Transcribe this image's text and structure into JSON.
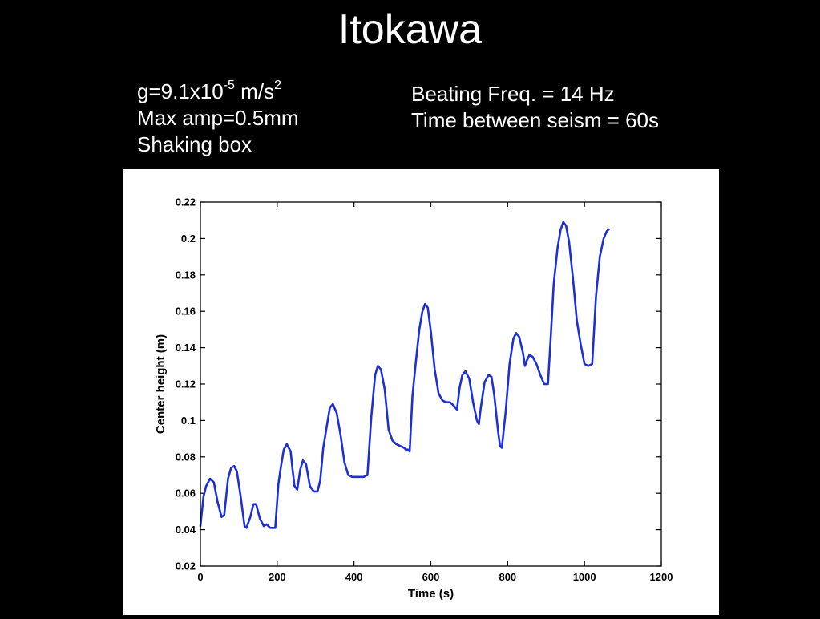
{
  "slide": {
    "title": "Itokawa",
    "left_info": {
      "gravity_prefix": "g=9.1x10",
      "gravity_exponent": "-5",
      "gravity_unit": " m/s",
      "gravity_unit_exponent": "2",
      "max_amp": "Max amp=0.5mm",
      "method": "Shaking box"
    },
    "right_info": {
      "beating_freq": "Beating Freq. = 14 Hz",
      "time_between": "Time between seism = 60s"
    }
  },
  "colors": {
    "background": "#000000",
    "text": "#ffffff",
    "plot_background": "#ffffff",
    "line": "#1f2fd6"
  },
  "chart_data": {
    "type": "line",
    "title": "",
    "xlabel": "Time (s)",
    "ylabel": "Center height (m)",
    "xlim": [
      0,
      1200
    ],
    "ylim": [
      0.02,
      0.22
    ],
    "xticks": [
      0,
      200,
      400,
      600,
      800,
      1000,
      1200
    ],
    "xtick_labels": [
      "0",
      "200",
      "400",
      "600",
      "800",
      "1000",
      "1200"
    ],
    "yticks": [
      0.02,
      0.04,
      0.06,
      0.08,
      0.1,
      0.12,
      0.14,
      0.16,
      0.18,
      0.2,
      0.22
    ],
    "ytick_labels": [
      "0.02",
      "0.04",
      "0.06",
      "0.08",
      "0.1",
      "0.12",
      "0.14",
      "0.16",
      "0.18",
      "0.2",
      "0.22"
    ],
    "grid": false,
    "series": [
      {
        "color": "#1f2fd6",
        "x": [
          0,
          8,
          15,
          25,
          35,
          45,
          55,
          62,
          72,
          80,
          88,
          95,
          105,
          115,
          120,
          130,
          138,
          145,
          155,
          165,
          172,
          182,
          195,
          203,
          210,
          217,
          225,
          235,
          240,
          245,
          252,
          260,
          267,
          275,
          285,
          295,
          305,
          312,
          320,
          330,
          337,
          345,
          355,
          365,
          375,
          385,
          395,
          405,
          415,
          425,
          435,
          445,
          455,
          462,
          470,
          480,
          490,
          500,
          510,
          520,
          530,
          535,
          540,
          545,
          552,
          560,
          570,
          578,
          585,
          592,
          600,
          610,
          620,
          630,
          640,
          650,
          660,
          668,
          675,
          682,
          690,
          700,
          710,
          720,
          725,
          730,
          740,
          750,
          758,
          765,
          775,
          780,
          785,
          795,
          805,
          815,
          822,
          830,
          840,
          845,
          850,
          857,
          865,
          875,
          885,
          895,
          905,
          912,
          920,
          930,
          938,
          945,
          952,
          960,
          970,
          980,
          990,
          1000,
          1010,
          1020,
          1030,
          1040,
          1050,
          1058,
          1063
        ],
        "y": [
          0.042,
          0.058,
          0.064,
          0.068,
          0.066,
          0.055,
          0.047,
          0.048,
          0.068,
          0.074,
          0.075,
          0.072,
          0.058,
          0.042,
          0.041,
          0.047,
          0.054,
          0.054,
          0.046,
          0.042,
          0.043,
          0.041,
          0.041,
          0.065,
          0.075,
          0.084,
          0.087,
          0.083,
          0.073,
          0.064,
          0.062,
          0.073,
          0.078,
          0.076,
          0.064,
          0.061,
          0.061,
          0.067,
          0.085,
          0.098,
          0.107,
          0.109,
          0.104,
          0.092,
          0.077,
          0.07,
          0.069,
          0.069,
          0.069,
          0.069,
          0.07,
          0.102,
          0.125,
          0.13,
          0.128,
          0.117,
          0.095,
          0.089,
          0.087,
          0.086,
          0.085,
          0.084,
          0.084,
          0.083,
          0.113,
          0.13,
          0.15,
          0.16,
          0.164,
          0.162,
          0.149,
          0.128,
          0.115,
          0.111,
          0.11,
          0.11,
          0.108,
          0.106,
          0.118,
          0.125,
          0.127,
          0.123,
          0.11,
          0.1,
          0.098,
          0.107,
          0.121,
          0.125,
          0.124,
          0.114,
          0.094,
          0.086,
          0.085,
          0.105,
          0.131,
          0.145,
          0.148,
          0.146,
          0.137,
          0.13,
          0.133,
          0.136,
          0.135,
          0.131,
          0.125,
          0.12,
          0.12,
          0.145,
          0.175,
          0.195,
          0.205,
          0.209,
          0.207,
          0.198,
          0.178,
          0.155,
          0.142,
          0.131,
          0.13,
          0.131,
          0.168,
          0.19,
          0.2,
          0.204,
          0.205
        ]
      }
    ]
  }
}
